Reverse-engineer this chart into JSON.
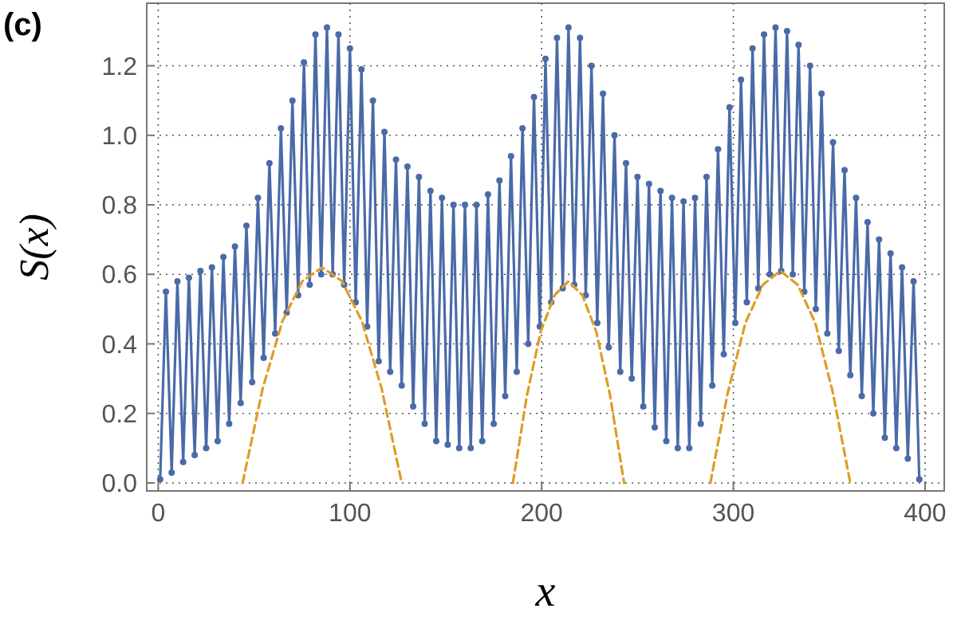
{
  "chart_data": {
    "type": "line",
    "title": "(c)",
    "xlabel": "x",
    "ylabel": "S(x)",
    "xlim": [
      -6,
      410
    ],
    "ylim": [
      -0.023,
      1.38
    ],
    "xticks": [
      0,
      100,
      200,
      300,
      400
    ],
    "yticks": [
      {
        "value": 0,
        "label": "0.0"
      },
      {
        "value": 0.2,
        "label": "0.2"
      },
      {
        "value": 0.4,
        "label": "0.4"
      },
      {
        "value": 0.6,
        "label": "0.6"
      },
      {
        "value": 0.8,
        "label": "0.8"
      },
      {
        "value": 1,
        "label": "1.0"
      },
      {
        "value": 1.2,
        "label": "1.2"
      }
    ],
    "grid": true,
    "series": [
      {
        "color": "#4a6aa8",
        "marker": "circle",
        "line_style": "solid",
        "x": [
          1,
          4,
          7,
          10,
          13,
          16,
          19,
          22,
          25,
          28,
          31,
          34,
          37,
          40,
          43,
          46,
          49,
          52,
          55,
          58,
          61,
          64,
          67,
          70,
          73,
          76,
          79,
          82,
          85,
          88,
          91,
          94,
          97,
          100,
          103,
          106,
          109,
          112,
          115,
          118,
          121,
          124,
          127,
          130,
          133,
          136,
          139,
          142,
          145,
          148,
          151,
          154,
          157,
          160,
          163,
          166,
          169,
          172,
          175,
          178,
          181,
          184,
          187,
          190,
          193,
          196,
          199,
          202,
          205,
          208,
          211,
          214,
          217,
          220,
          223,
          226,
          229,
          232,
          235,
          238,
          241,
          244,
          247,
          250,
          253,
          256,
          259,
          262,
          265,
          268,
          271,
          274,
          277,
          280,
          283,
          286,
          289,
          292,
          295,
          298,
          301,
          304,
          307,
          310,
          313,
          316,
          319,
          322,
          325,
          328,
          331,
          334,
          337,
          340,
          343,
          346,
          349,
          352,
          355,
          358,
          361,
          364,
          367,
          370,
          373,
          376,
          379,
          382,
          385,
          388,
          391,
          394,
          397
        ],
        "values": [
          0.01,
          0.55,
          0.03,
          0.58,
          0.06,
          0.59,
          0.08,
          0.61,
          0.1,
          0.62,
          0.12,
          0.65,
          0.17,
          0.68,
          0.23,
          0.74,
          0.29,
          0.82,
          0.36,
          0.92,
          0.43,
          1.02,
          0.49,
          1.1,
          0.54,
          1.21,
          0.57,
          1.29,
          0.6,
          1.31,
          0.6,
          1.29,
          0.57,
          1.25,
          0.52,
          1.19,
          0.45,
          1.1,
          0.35,
          1.01,
          0.32,
          0.93,
          0.28,
          0.91,
          0.22,
          0.88,
          0.17,
          0.84,
          0.12,
          0.82,
          0.11,
          0.8,
          0.1,
          0.8,
          0.1,
          0.8,
          0.12,
          0.83,
          0.17,
          0.87,
          0.25,
          0.94,
          0.32,
          1.02,
          0.4,
          1.11,
          0.45,
          1.22,
          0.52,
          1.28,
          0.56,
          1.31,
          0.57,
          1.28,
          0.54,
          1.2,
          0.46,
          1.12,
          0.39,
          1.0,
          0.32,
          0.92,
          0.3,
          0.88,
          0.22,
          0.86,
          0.16,
          0.84,
          0.12,
          0.82,
          0.1,
          0.81,
          0.1,
          0.82,
          0.17,
          0.88,
          0.28,
          0.96,
          0.37,
          1.08,
          0.46,
          1.16,
          0.52,
          1.25,
          0.56,
          1.29,
          0.6,
          1.31,
          0.61,
          1.3,
          0.6,
          1.26,
          0.55,
          1.2,
          0.5,
          1.12,
          0.43,
          0.98,
          0.38,
          0.9,
          0.31,
          0.82,
          0.25,
          0.75,
          0.2,
          0.7,
          0.13,
          0.66,
          0.1,
          0.62,
          0.07,
          0.58,
          0.01
        ]
      },
      {
        "color": "#e19c24",
        "marker": "none",
        "line_style": "dashed",
        "x": [
          44,
          54.4,
          64.75,
          75.1,
          85.5,
          95.9,
          106.25,
          116.6,
          127
        ],
        "values": [
          0,
          0.27,
          0.465,
          0.58,
          0.62,
          0.58,
          0.465,
          0.27,
          0
        ]
      },
      {
        "color": "#e19c24",
        "marker": "none",
        "line_style": "dashed",
        "x": [
          185,
          192.25,
          199.5,
          206.75,
          214,
          221.25,
          228.5,
          235.75,
          243
        ],
        "values": [
          0,
          0.25,
          0.435,
          0.54,
          0.58,
          0.54,
          0.435,
          0.25,
          0
        ]
      },
      {
        "color": "#e19c24",
        "marker": "none",
        "line_style": "dashed",
        "x": [
          288,
          297.1,
          306.25,
          315.4,
          324.5,
          333.6,
          342.75,
          351.9,
          361
        ],
        "values": [
          0,
          0.26,
          0.46,
          0.57,
          0.61,
          0.57,
          0.46,
          0.26,
          0
        ]
      }
    ]
  }
}
